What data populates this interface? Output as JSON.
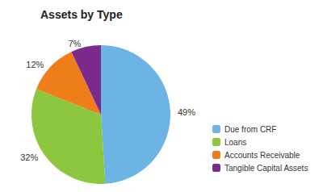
{
  "chart_data": {
    "type": "pie",
    "title": "Assets by Type",
    "categories": [
      "Due from CRF",
      "Loans",
      "Accounts Receivable",
      "Tangible Capital Assets"
    ],
    "values": [
      49,
      32,
      12,
      7
    ],
    "value_labels": [
      "49%",
      "32%",
      "12%",
      "7%"
    ],
    "colors": [
      "#6cb4e4",
      "#8dc63f",
      "#ef7d1a",
      "#7b2a8c"
    ],
    "data_labels": true,
    "legend": "right"
  }
}
